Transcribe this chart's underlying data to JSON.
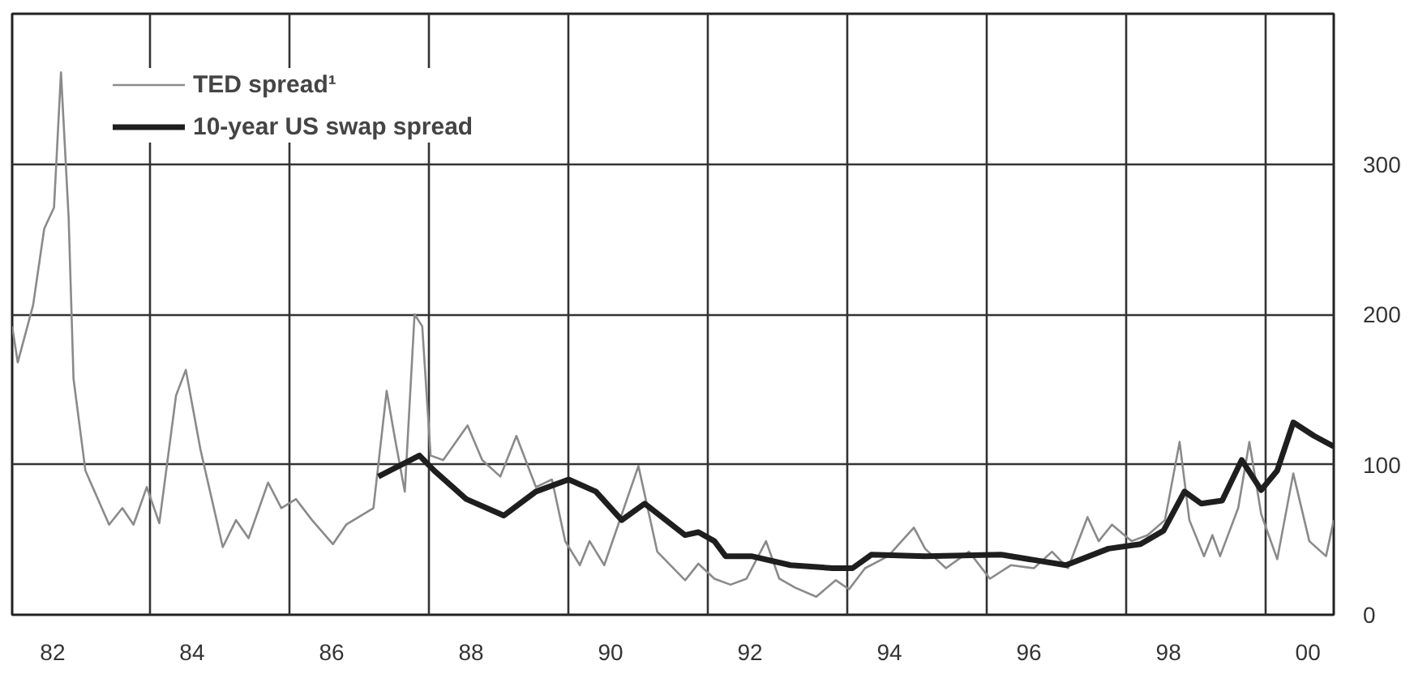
{
  "chart_data": {
    "type": "line",
    "xlim": [
      1981.42,
      2000.37
    ],
    "ylim": [
      0,
      400
    ],
    "xticks": [
      {
        "value": 1982,
        "label": "82"
      },
      {
        "value": 1984,
        "label": "84"
      },
      {
        "value": 1986,
        "label": "86"
      },
      {
        "value": 1988,
        "label": "88"
      },
      {
        "value": 1990,
        "label": "90"
      },
      {
        "value": 1992,
        "label": "92"
      },
      {
        "value": 1994,
        "label": "94"
      },
      {
        "value": 1996,
        "label": "96"
      },
      {
        "value": 1998,
        "label": "98"
      },
      {
        "value": 2000,
        "label": "00"
      },
      {
        "value": 1983.4,
        "label": null
      },
      {
        "value": 1985.4,
        "label": null
      },
      {
        "value": 1987.4,
        "label": null
      },
      {
        "value": 1989.4,
        "label": null
      },
      {
        "value": 1991.4,
        "label": null
      },
      {
        "value": 1993.4,
        "label": null
      },
      {
        "value": 1995.4,
        "label": null
      },
      {
        "value": 1997.4,
        "label": null
      },
      {
        "value": 1999.4,
        "label": null
      }
    ],
    "yticks": [
      0,
      100,
      200,
      300
    ],
    "grid": true,
    "legend": "top left",
    "series": [
      {
        "name": "TED spread¹",
        "color": "#8a8a8a",
        "x": [
          1981.42,
          1981.5,
          1981.72,
          1981.88,
          1982.02,
          1982.12,
          1982.23,
          1982.3,
          1982.47,
          1982.65,
          1982.81,
          1983.0,
          1983.16,
          1983.35,
          1983.53,
          1983.77,
          1983.91,
          1984.12,
          1984.44,
          1984.63,
          1984.81,
          1985.09,
          1985.28,
          1985.49,
          1985.72,
          1986.02,
          1986.21,
          1986.6,
          1986.79,
          1986.91,
          1987.05,
          1987.19,
          1987.3,
          1987.42,
          1987.6,
          1987.95,
          1988.16,
          1988.42,
          1988.65,
          1988.93,
          1989.16,
          1989.35,
          1989.56,
          1989.7,
          1989.91,
          1990.4,
          1990.67,
          1991.07,
          1991.26,
          1991.49,
          1991.72,
          1991.95,
          1992.23,
          1992.42,
          1992.65,
          1992.95,
          1993.23,
          1993.42,
          1993.65,
          1993.98,
          1994.35,
          1994.51,
          1994.81,
          1995.14,
          1995.44,
          1995.74,
          1996.07,
          1996.33,
          1996.56,
          1996.84,
          1997.0,
          1997.19,
          1997.47,
          1997.7,
          1997.95,
          1998.16,
          1998.3,
          1998.51,
          1998.63,
          1998.74,
          1999.0,
          1999.16,
          1999.33,
          1999.56,
          1999.79,
          2000.02,
          2000.26,
          2000.37
        ],
        "values": [
          192,
          168,
          206,
          257,
          271,
          361,
          264,
          157,
          96,
          77,
          60,
          71,
          60,
          85,
          61,
          146,
          163,
          110,
          45,
          63,
          51,
          88,
          71,
          77,
          63,
          47,
          60,
          71,
          149,
          117,
          82,
          200,
          192,
          106,
          103,
          126,
          103,
          92,
          119,
          85,
          90,
          49,
          33,
          49,
          33,
          99,
          42,
          23,
          34,
          24,
          20,
          24,
          49,
          24,
          18,
          12,
          23,
          17,
          31,
          39,
          58,
          44,
          31,
          42,
          24,
          33,
          31,
          42,
          31,
          65,
          49,
          60,
          49,
          53,
          63,
          115,
          63,
          39,
          53,
          39,
          71,
          115,
          67,
          37,
          94,
          49,
          39,
          63
        ]
      },
      {
        "name": "10-year US swap spread",
        "color": "#1e1e1e",
        "x": [
          1986.67,
          1987.26,
          1987.47,
          1987.93,
          1988.47,
          1988.93,
          1989.4,
          1989.79,
          1990.16,
          1990.49,
          1991.07,
          1991.26,
          1991.49,
          1991.65,
          1992.02,
          1992.58,
          1993.19,
          1993.47,
          1993.74,
          1994.51,
          1995.6,
          1996.53,
          1997.14,
          1997.6,
          1997.93,
          1998.23,
          1998.47,
          1998.77,
          1999.05,
          1999.33,
          1999.56,
          1999.79,
          2000.09,
          2000.37
        ],
        "values": [
          92,
          106,
          96,
          77,
          66,
          82,
          90,
          82,
          63,
          74,
          53,
          55,
          49,
          39,
          39,
          33,
          31,
          31,
          40,
          39,
          40,
          33,
          44,
          47,
          56,
          82,
          74,
          76,
          103,
          83,
          96,
          128,
          119,
          112
        ]
      }
    ]
  }
}
